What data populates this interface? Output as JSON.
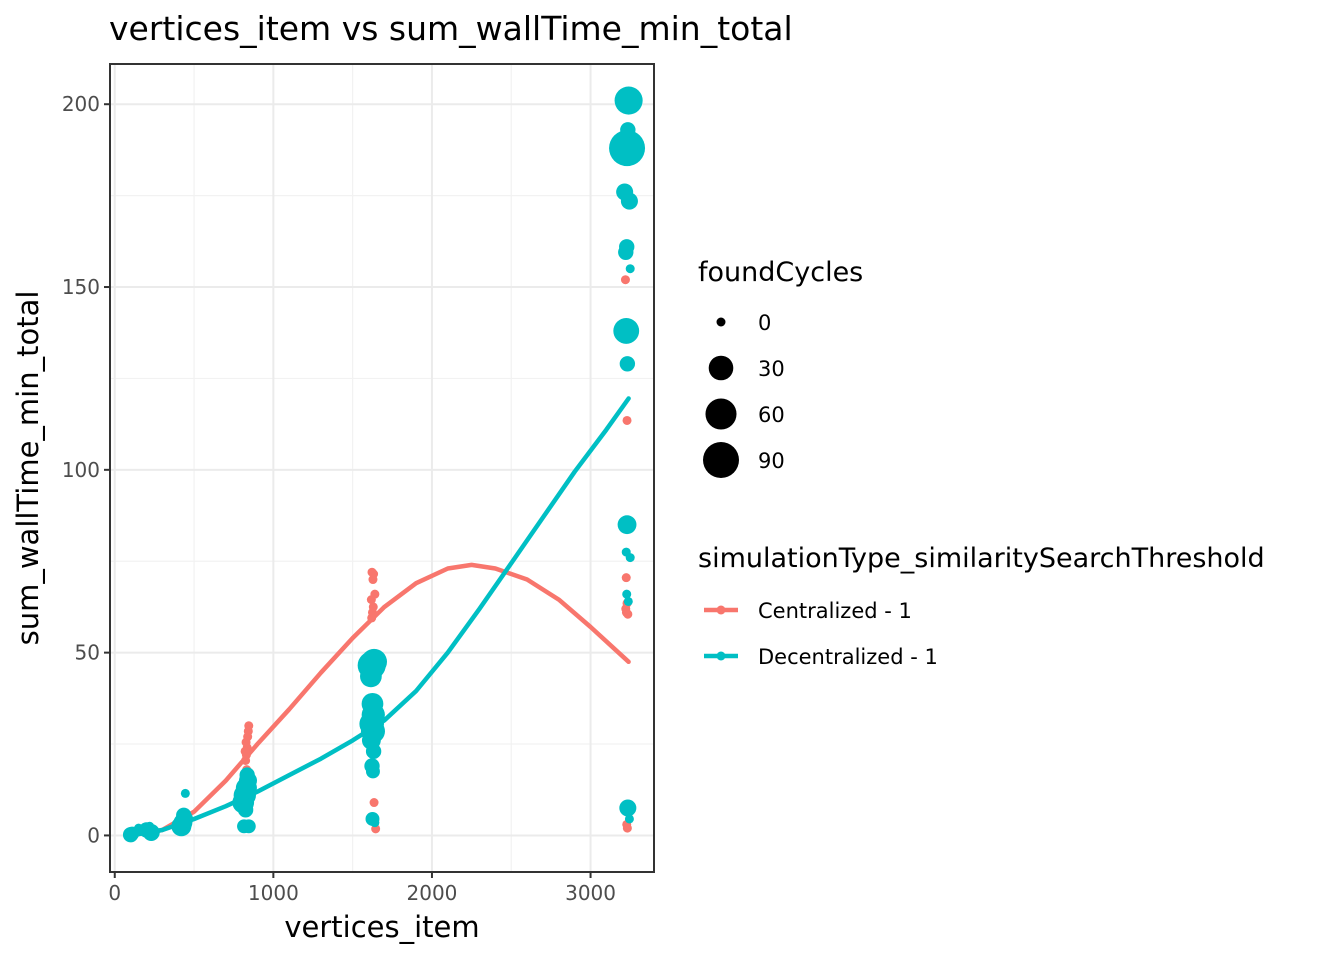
{
  "chart_data": {
    "type": "scatter",
    "title": "vertices_item  vs  sum_wallTime_min_total",
    "xlabel": "vertices_item",
    "ylabel": "sum_wallTime_min_total",
    "xlim": [
      -30,
      3400
    ],
    "ylim": [
      -10,
      211
    ],
    "x_ticks": [
      0,
      1000,
      2000,
      3000
    ],
    "x_tick_labels": [
      "0",
      "1000",
      "2000",
      "3000"
    ],
    "y_ticks": [
      0,
      50,
      100,
      150,
      200
    ],
    "y_tick_labels": [
      "0",
      "50",
      "100",
      "150",
      "200"
    ],
    "grid": true,
    "size_legend": {
      "title": "foundCycles",
      "entries": [
        {
          "label": "0",
          "value": 0
        },
        {
          "label": "30",
          "value": 30
        },
        {
          "label": "60",
          "value": 60
        },
        {
          "label": "90",
          "value": 90
        }
      ]
    },
    "color_legend": {
      "title": "simulationType_similaritySearchThreshold",
      "placement": "right"
    },
    "series": [
      {
        "name": "Centralized - 1",
        "color": "#F8766D",
        "points": [
          {
            "x": 100,
            "y": 0.3,
            "s": 0
          },
          {
            "x": 112,
            "y": 0.8,
            "s": 0
          },
          {
            "x": 125,
            "y": 0.5,
            "s": 0
          },
          {
            "x": 200,
            "y": 1.0,
            "s": 0
          },
          {
            "x": 215,
            "y": 0.8,
            "s": 0
          },
          {
            "x": 420,
            "y": 2.5,
            "s": 0
          },
          {
            "x": 430,
            "y": 3.5,
            "s": 0
          },
          {
            "x": 440,
            "y": 4.5,
            "s": 0
          },
          {
            "x": 435,
            "y": 6.0,
            "s": 0
          },
          {
            "x": 425,
            "y": 5.0,
            "s": 0
          },
          {
            "x": 825,
            "y": 20.5,
            "s": 0
          },
          {
            "x": 830,
            "y": 22.0,
            "s": 0
          },
          {
            "x": 835,
            "y": 24.0,
            "s": 0
          },
          {
            "x": 828,
            "y": 25.5,
            "s": 0
          },
          {
            "x": 838,
            "y": 27.0,
            "s": 0
          },
          {
            "x": 842,
            "y": 28.5,
            "s": 0
          },
          {
            "x": 845,
            "y": 30.0,
            "s": 0
          },
          {
            "x": 832,
            "y": 18.0,
            "s": 0
          },
          {
            "x": 822,
            "y": 23.0,
            "s": 0
          },
          {
            "x": 1620,
            "y": 59.5,
            "s": 0
          },
          {
            "x": 1625,
            "y": 61.0,
            "s": 0
          },
          {
            "x": 1630,
            "y": 62.5,
            "s": 0
          },
          {
            "x": 1618,
            "y": 64.5,
            "s": 0
          },
          {
            "x": 1640,
            "y": 66.0,
            "s": 0
          },
          {
            "x": 1628,
            "y": 70.0,
            "s": 0
          },
          {
            "x": 1632,
            "y": 71.5,
            "s": 0
          },
          {
            "x": 1622,
            "y": 72.0,
            "s": 0
          },
          {
            "x": 1635,
            "y": 9.0,
            "s": 0
          },
          {
            "x": 1645,
            "y": 1.8,
            "s": 0
          },
          {
            "x": 3220,
            "y": 152.0,
            "s": 0
          },
          {
            "x": 3230,
            "y": 113.5,
            "s": 0
          },
          {
            "x": 3225,
            "y": 70.5,
            "s": 0
          },
          {
            "x": 3230,
            "y": 63.5,
            "s": 0
          },
          {
            "x": 3222,
            "y": 62.0,
            "s": 0
          },
          {
            "x": 3235,
            "y": 60.5,
            "s": 0
          },
          {
            "x": 3226,
            "y": 61.0,
            "s": 0
          },
          {
            "x": 3228,
            "y": 3.0,
            "s": 0
          },
          {
            "x": 3232,
            "y": 2.0,
            "s": 0
          }
        ],
        "smooth": [
          {
            "x": 100,
            "y": 0
          },
          {
            "x": 300,
            "y": 1.5
          },
          {
            "x": 500,
            "y": 6.5
          },
          {
            "x": 700,
            "y": 15.0
          },
          {
            "x": 900,
            "y": 25.0
          },
          {
            "x": 1100,
            "y": 34.5
          },
          {
            "x": 1300,
            "y": 44.5
          },
          {
            "x": 1500,
            "y": 54.0
          },
          {
            "x": 1700,
            "y": 62.5
          },
          {
            "x": 1900,
            "y": 69.0
          },
          {
            "x": 2100,
            "y": 73.0
          },
          {
            "x": 2250,
            "y": 74.0
          },
          {
            "x": 2400,
            "y": 73.0
          },
          {
            "x": 2600,
            "y": 70.0
          },
          {
            "x": 2800,
            "y": 64.5
          },
          {
            "x": 3000,
            "y": 57.0
          },
          {
            "x": 3240,
            "y": 47.5
          }
        ]
      },
      {
        "name": "Decentralized - 1",
        "color": "#00BFC4",
        "points": [
          {
            "x": 100,
            "y": 0.2,
            "s": 5
          },
          {
            "x": 110,
            "y": 0.5,
            "s": 3
          },
          {
            "x": 130,
            "y": 1.0,
            "s": 0
          },
          {
            "x": 150,
            "y": 2.0,
            "s": 0
          },
          {
            "x": 200,
            "y": 1.5,
            "s": 5
          },
          {
            "x": 220,
            "y": 2.5,
            "s": 0
          },
          {
            "x": 230,
            "y": 0.8,
            "s": 8
          },
          {
            "x": 420,
            "y": 2.5,
            "s": 15
          },
          {
            "x": 430,
            "y": 3.5,
            "s": 12
          },
          {
            "x": 440,
            "y": 4.5,
            "s": 8
          },
          {
            "x": 435,
            "y": 5.5,
            "s": 5
          },
          {
            "x": 445,
            "y": 11.5,
            "s": 0
          },
          {
            "x": 810,
            "y": 9.0,
            "s": 20
          },
          {
            "x": 820,
            "y": 11.0,
            "s": 22
          },
          {
            "x": 830,
            "y": 13.0,
            "s": 18
          },
          {
            "x": 840,
            "y": 15.0,
            "s": 10
          },
          {
            "x": 835,
            "y": 16.5,
            "s": 5
          },
          {
            "x": 825,
            "y": 7.0,
            "s": 5
          },
          {
            "x": 815,
            "y": 2.5,
            "s": 3
          },
          {
            "x": 845,
            "y": 2.5,
            "s": 3
          },
          {
            "x": 1620,
            "y": 46.5,
            "s": 45
          },
          {
            "x": 1635,
            "y": 47.5,
            "s": 35
          },
          {
            "x": 1615,
            "y": 43.5,
            "s": 20
          },
          {
            "x": 1625,
            "y": 36.0,
            "s": 20
          },
          {
            "x": 1630,
            "y": 33.0,
            "s": 25
          },
          {
            "x": 1620,
            "y": 30.5,
            "s": 30
          },
          {
            "x": 1628,
            "y": 28.5,
            "s": 28
          },
          {
            "x": 1618,
            "y": 26.0,
            "s": 12
          },
          {
            "x": 1632,
            "y": 23.0,
            "s": 5
          },
          {
            "x": 1622,
            "y": 19.0,
            "s": 5
          },
          {
            "x": 1628,
            "y": 17.5,
            "s": 3
          },
          {
            "x": 1625,
            "y": 4.5,
            "s": 3
          },
          {
            "x": 1640,
            "y": 3.5,
            "s": 0
          },
          {
            "x": 3240,
            "y": 201.0,
            "s": 45
          },
          {
            "x": 3230,
            "y": 188.0,
            "s": 90
          },
          {
            "x": 3235,
            "y": 193.0,
            "s": 5
          },
          {
            "x": 3215,
            "y": 176.0,
            "s": 8
          },
          {
            "x": 3245,
            "y": 173.5,
            "s": 8
          },
          {
            "x": 3228,
            "y": 161.0,
            "s": 5
          },
          {
            "x": 3222,
            "y": 159.5,
            "s": 5
          },
          {
            "x": 3250,
            "y": 155.0,
            "s": 0
          },
          {
            "x": 3225,
            "y": 138.0,
            "s": 35
          },
          {
            "x": 3232,
            "y": 129.0,
            "s": 5
          },
          {
            "x": 3230,
            "y": 85.0,
            "s": 12
          },
          {
            "x": 3225,
            "y": 77.5,
            "s": 0
          },
          {
            "x": 3250,
            "y": 76.0,
            "s": 0
          },
          {
            "x": 3228,
            "y": 66.0,
            "s": 0
          },
          {
            "x": 3238,
            "y": 64.0,
            "s": 0
          },
          {
            "x": 3235,
            "y": 7.5,
            "s": 8
          },
          {
            "x": 3245,
            "y": 4.5,
            "s": 0
          }
        ],
        "smooth": [
          {
            "x": 100,
            "y": 0
          },
          {
            "x": 300,
            "y": 1.5
          },
          {
            "x": 500,
            "y": 4.5
          },
          {
            "x": 700,
            "y": 8.0
          },
          {
            "x": 900,
            "y": 12.0
          },
          {
            "x": 1100,
            "y": 16.5
          },
          {
            "x": 1300,
            "y": 21.0
          },
          {
            "x": 1500,
            "y": 26.0
          },
          {
            "x": 1700,
            "y": 31.5
          },
          {
            "x": 1900,
            "y": 39.5
          },
          {
            "x": 2100,
            "y": 50.0
          },
          {
            "x": 2300,
            "y": 62.0
          },
          {
            "x": 2500,
            "y": 74.5
          },
          {
            "x": 2700,
            "y": 87.0
          },
          {
            "x": 2900,
            "y": 99.5
          },
          {
            "x": 3100,
            "y": 111.0
          },
          {
            "x": 3240,
            "y": 119.5
          }
        ]
      }
    ]
  }
}
